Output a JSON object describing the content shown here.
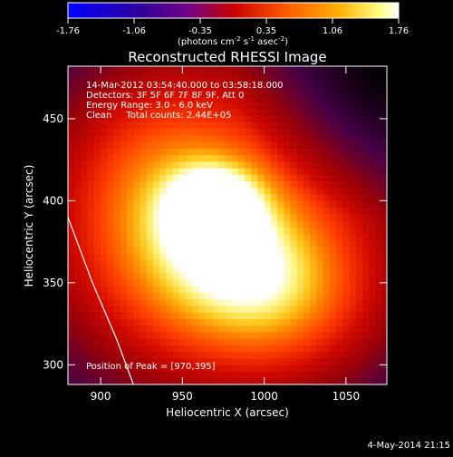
{
  "colorbar": {
    "ticks": [
      "-1.76",
      "-1.06",
      "-0.35",
      "0.35",
      "1.06",
      "1.76"
    ],
    "unit_parts": [
      "(photons cm",
      "-2",
      " s",
      "-1",
      " asec",
      "-2",
      ")"
    ],
    "colors": [
      "#0000ff",
      "#3a00a0",
      "#6a0096",
      "#c80000",
      "#ff6a00",
      "#ffb000",
      "#ffff80",
      "#ffffff"
    ]
  },
  "chart_data": {
    "type": "heatmap",
    "title": "Reconstructed RHESSI Image",
    "xlabel": "Heliocentric X (arcsec)",
    "ylabel": "Heliocentric Y (arcsec)",
    "xlim": [
      880,
      1075
    ],
    "ylim": [
      288,
      482
    ],
    "xticks": [
      900,
      950,
      1000,
      1050
    ],
    "yticks": [
      300,
      350,
      400,
      450
    ],
    "peak": [
      970,
      395
    ],
    "info_lines": [
      "14-Mar-2012 03:54:40.000 to 03:58:18.000",
      "Detectors: 3F 5F 6F 7F 8F 9F, Att 0",
      "Energy Range: 3.0 - 6.0 keV",
      "Clean     Total counts: 2.44E+05"
    ],
    "peak_text": "Position of Peak = [970,395]",
    "limb_curve": [
      [
        880,
        390
      ],
      [
        895,
        350
      ],
      [
        910,
        315
      ],
      [
        920,
        288
      ]
    ]
  },
  "footer_date": "4-May-2014 21:15"
}
